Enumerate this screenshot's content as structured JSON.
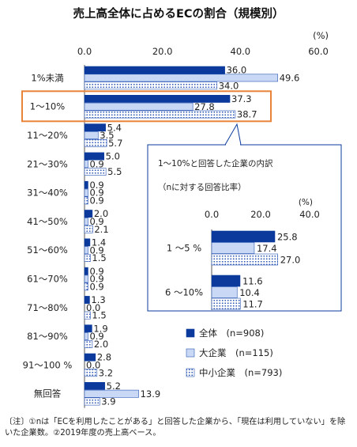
{
  "chart_data": {
    "type": "bar",
    "title": "売上高全体に占めるECの割合（規模別）",
    "unit": "(%)",
    "xlim": [
      0,
      60
    ],
    "ticks": [
      "0.0",
      "20.0",
      "40.0",
      "60.0"
    ],
    "categories": [
      "1%未満",
      "1～10%",
      "11～20%",
      "21～30%",
      "31～40%",
      "41～50%",
      "51～60%",
      "61～70%",
      "71～80%",
      "81～90%",
      "91～100 %",
      "無回答"
    ],
    "series": [
      {
        "name": "全体　(n=908)",
        "values": [
          36.0,
          37.3,
          5.4,
          5.0,
          0.9,
          2.0,
          1.4,
          0.9,
          1.3,
          1.9,
          2.8,
          5.2
        ],
        "labels": [
          "36.0",
          "37.3",
          "5.4",
          "5.0",
          "0.9",
          "2.0",
          "1.4",
          "0.9",
          "1.3",
          "1.9",
          "2.8",
          "5.2"
        ],
        "color": "#0b3a9c",
        "pattern": "solid"
      },
      {
        "name": "大企業　(n=115)",
        "values": [
          49.6,
          27.8,
          3.5,
          0.9,
          0.9,
          0.9,
          0.9,
          0.9,
          0.0,
          0.9,
          0.0,
          13.9
        ],
        "labels": [
          "49.6",
          "27.8",
          "3.5",
          "0.9",
          "0.9",
          "0.9",
          "0.9",
          "0.9",
          "0.0",
          "0.9",
          "0.0",
          "13.9"
        ],
        "color": "#c9d9f5",
        "pattern": "light"
      },
      {
        "name": "中小企業　(n=793)",
        "values": [
          34.0,
          38.7,
          5.7,
          5.5,
          0.9,
          2.1,
          1.5,
          0.9,
          1.5,
          2.0,
          3.2,
          3.9
        ],
        "labels": [
          "34.0",
          "38.7",
          "5.7",
          "5.5",
          "0.9",
          "2.1",
          "1.5",
          "0.9",
          "1.5",
          "2.0",
          "3.2",
          "3.9"
        ],
        "color": "#2a55b5",
        "pattern": "dots"
      }
    ],
    "highlight_category": "1～10%",
    "inset": {
      "title": "1～10%と回答した企業の内訳",
      "subtitle": "（nに対する回答比率）",
      "unit": "(%)",
      "xlim": [
        0,
        40
      ],
      "ticks": [
        "0.0",
        "20.0",
        "40.0"
      ],
      "categories": [
        "1 ～5 %",
        "6 ～10%"
      ],
      "series": [
        {
          "name": "全体",
          "values": [
            25.8,
            11.6
          ],
          "labels": [
            "25.8",
            "11.6"
          ]
        },
        {
          "name": "大企業",
          "values": [
            17.4,
            10.4
          ],
          "labels": [
            "17.4",
            "10.4"
          ]
        },
        {
          "name": "中小企業",
          "values": [
            27.0,
            11.7
          ],
          "labels": [
            "27.0",
            "11.7"
          ]
        }
      ]
    }
  },
  "note": {
    "text": "〔注〕①nは「ECを利用したことがある」と回答した企業から、「現在は利用していない」を除いた企業数。②2019年度の売上高ベース。"
  },
  "colors": {
    "accent": "#e8833a",
    "dark_blue": "#0b3a9c",
    "light_blue": "#c9d9f5"
  }
}
